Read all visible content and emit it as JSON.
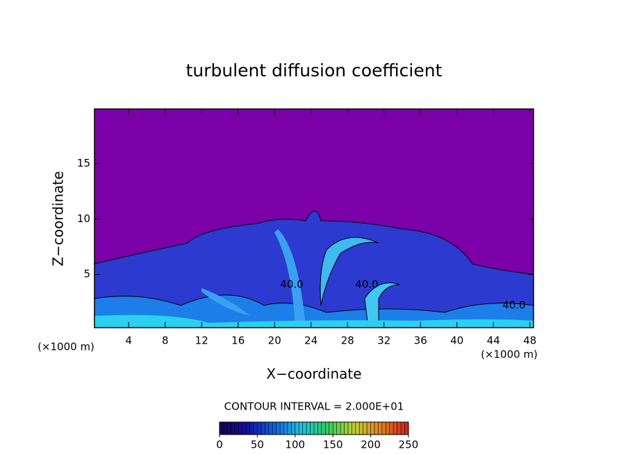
{
  "chart_data": {
    "type": "contour",
    "title": "turbulent diffusion coefficient",
    "x_label": "X−coordinate",
    "y_label": "Z−coordinate",
    "y_unit": "(×1000 m)",
    "x_unit": "(×1000 m)",
    "xlim": [
      0.25,
      48.4
    ],
    "xticks": [
      4,
      8,
      12,
      16,
      20,
      24,
      28,
      32,
      36,
      40,
      44,
      48
    ],
    "ylim": [
      0.2,
      19.9
    ],
    "yticks": [
      5,
      10,
      15
    ],
    "background_color": "#7b00a8",
    "contour_interval_label": "CONTOUR INTERVAL = 2.000E+01",
    "contour_labels": [
      "40.0",
      "40.0",
      "40.0"
    ],
    "colorbar": {
      "lim": [
        0,
        250
      ],
      "ticks": [
        0,
        50,
        100,
        150,
        200,
        250
      ],
      "colors": [
        "#1a0050",
        "#1010a0",
        "#1060e0",
        "#20c0e0",
        "#30d060",
        "#c0d030",
        "#e08020",
        "#d02020"
      ]
    }
  }
}
